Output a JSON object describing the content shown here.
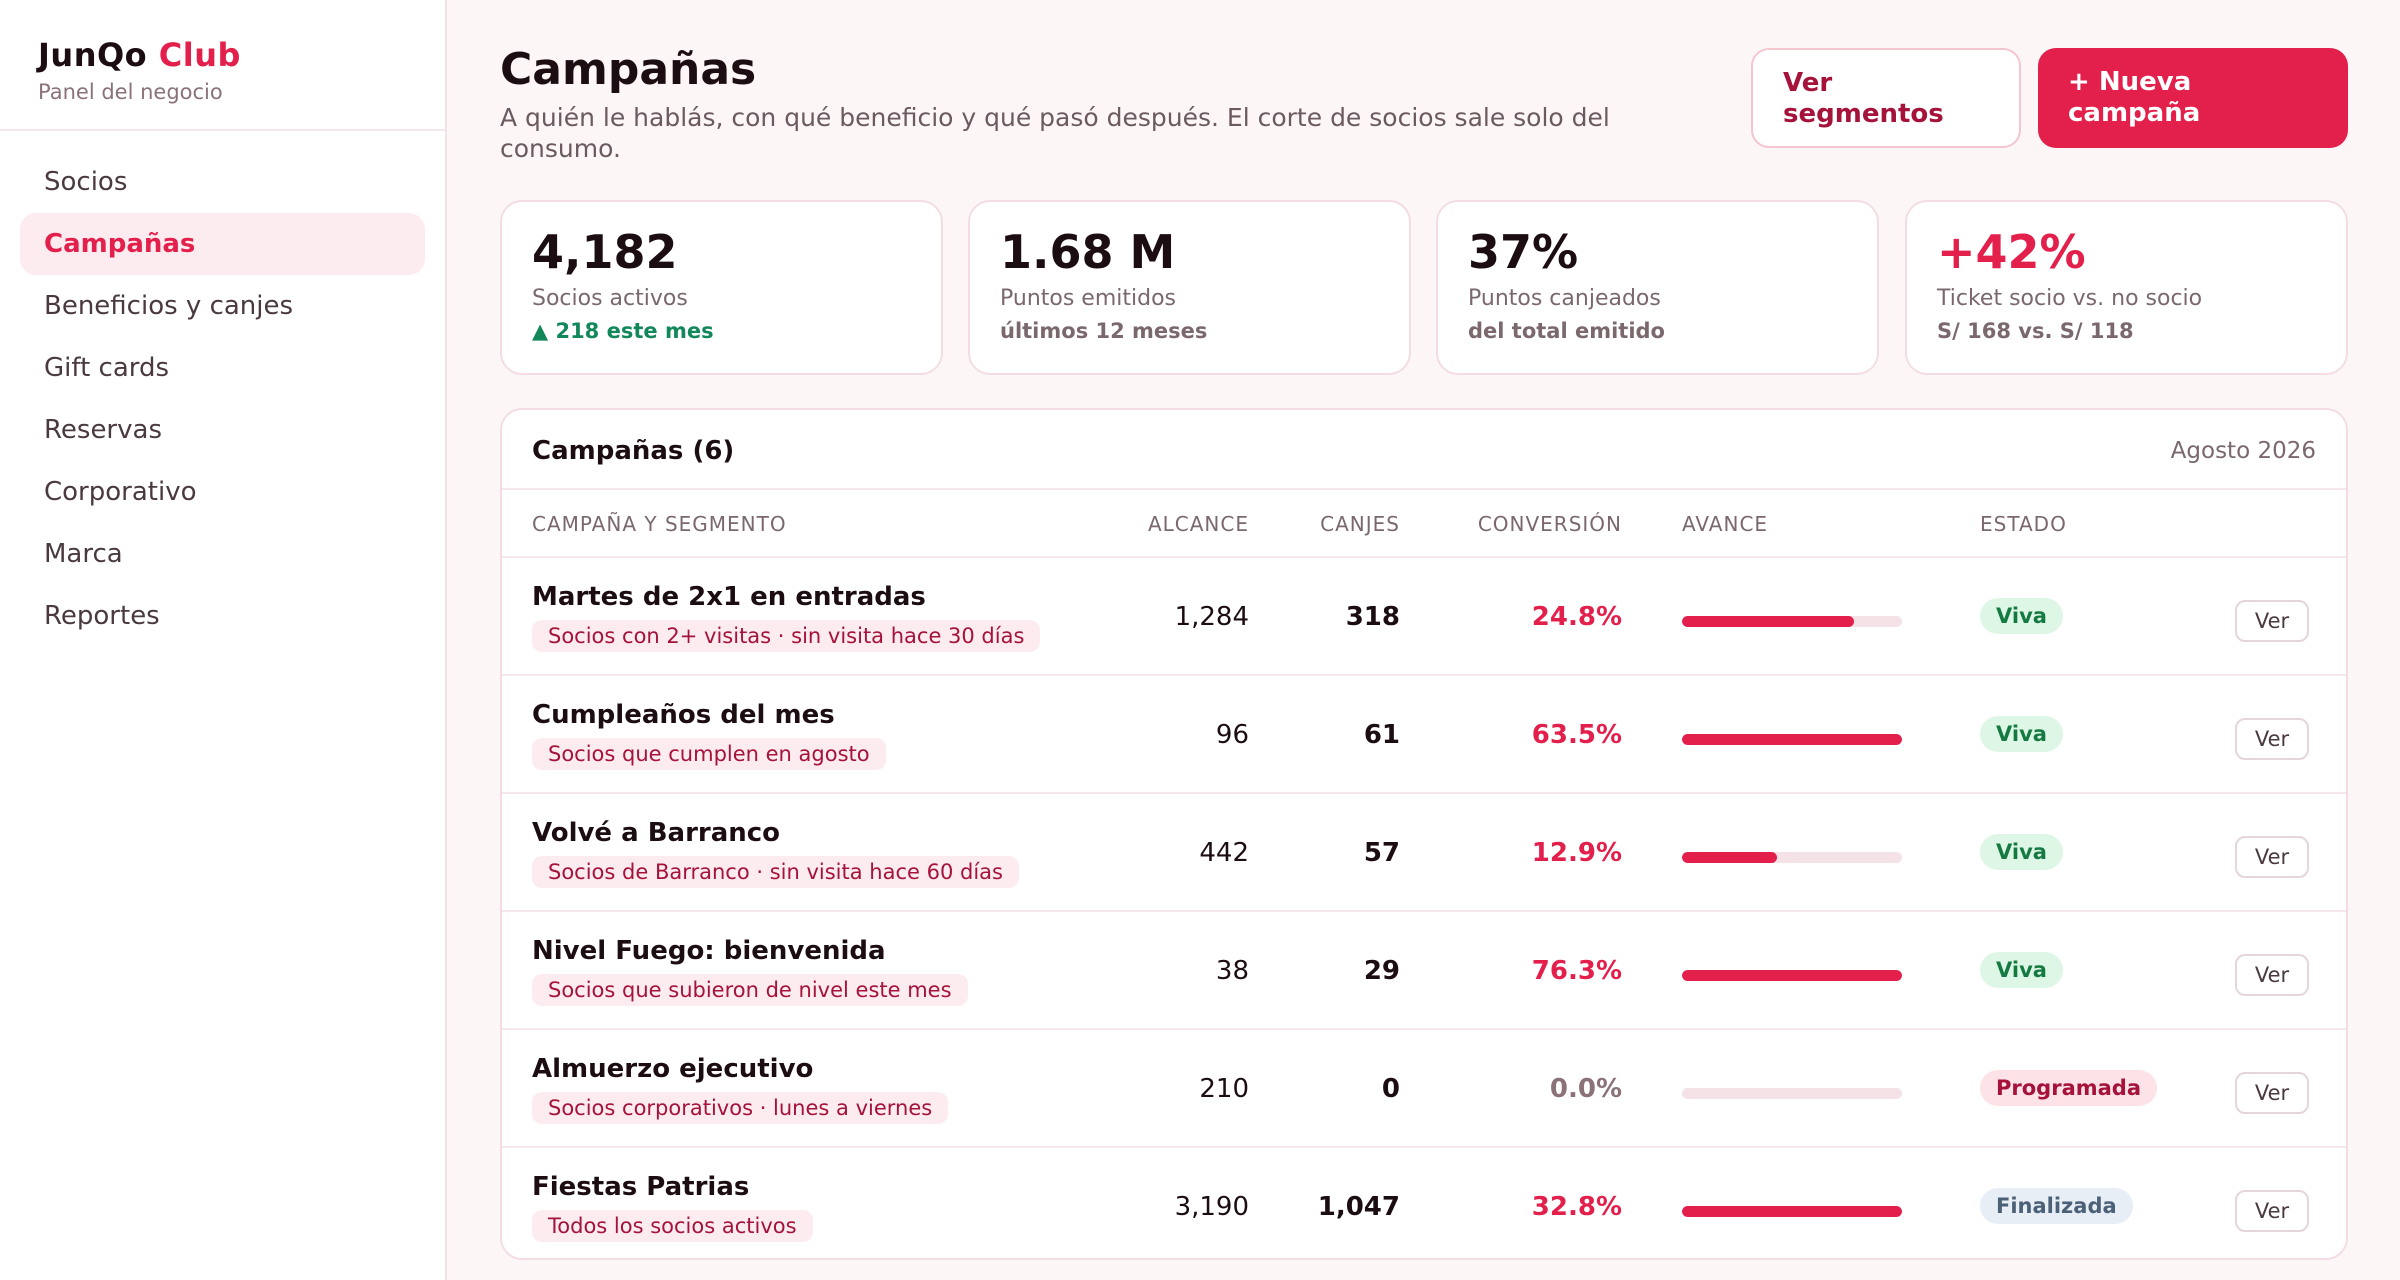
{
  "brand": {
    "name": "JunQo",
    "accent": "Club",
    "subtitle": "Panel del negocio"
  },
  "nav": [
    {
      "label": "Socios",
      "active": false
    },
    {
      "label": "Campañas",
      "active": true
    },
    {
      "label": "Beneficios y canjes",
      "active": false
    },
    {
      "label": "Gift cards",
      "active": false
    },
    {
      "label": "Reservas",
      "active": false
    },
    {
      "label": "Corporativo",
      "active": false
    },
    {
      "label": "Marca",
      "active": false
    },
    {
      "label": "Reportes",
      "active": false
    }
  ],
  "header": {
    "title": "Campañas",
    "subtitle": "A quién le hablás, con qué beneficio y qué pasó después. El corte de socios sale solo del consumo.",
    "segments_button": "Ver segmentos",
    "new_button": "+ Nueva campaña"
  },
  "stats": [
    {
      "value": "4,182",
      "label": "Socios activos",
      "note": "▲ 218 este mes"
    },
    {
      "value": "1.68 M",
      "label": "Puntos emitidos",
      "note": "últimos 12 meses"
    },
    {
      "value": "37%",
      "label": "Puntos canjeados",
      "note": "del total emitido"
    },
    {
      "value": "+42%",
      "label": "Ticket socio vs. no socio",
      "note": "S/ 168 vs. S/ 118"
    }
  ],
  "table": {
    "title": "Campañas (6)",
    "period": "Agosto 2026",
    "columns": {
      "campaign": "CAMPAÑA Y SEGMENTO",
      "reach": "ALCANCE",
      "redemptions": "CANJES",
      "conversion": "CONVERSIÓN",
      "progress": "AVANCE",
      "status": "ESTADO"
    },
    "view_label": "Ver",
    "rows": [
      {
        "name": "Martes de 2x1 en entradas",
        "segment": "Socios con 2+ visitas · sin visita hace 30 días",
        "reach": "1,284",
        "redemptions": "318",
        "conversion": "24.8%",
        "progress": 0.78,
        "status": "Viva",
        "status_kind": "viva"
      },
      {
        "name": "Cumpleaños del mes",
        "segment": "Socios que cumplen en agosto",
        "reach": "96",
        "redemptions": "61",
        "conversion": "63.5%",
        "progress": 1.0,
        "status": "Viva",
        "status_kind": "viva"
      },
      {
        "name": "Volvé a Barranco",
        "segment": "Socios de Barranco · sin visita hace 60 días",
        "reach": "442",
        "redemptions": "57",
        "conversion": "12.9%",
        "progress": 0.43,
        "status": "Viva",
        "status_kind": "viva"
      },
      {
        "name": "Nivel Fuego: bienvenida",
        "segment": "Socios que subieron de nivel este mes",
        "reach": "38",
        "redemptions": "29",
        "conversion": "76.3%",
        "progress": 1.0,
        "status": "Viva",
        "status_kind": "viva"
      },
      {
        "name": "Almuerzo ejecutivo",
        "segment": "Socios corporativos · lunes a viernes",
        "reach": "210",
        "redemptions": "0",
        "conversion": "0.0%",
        "progress": 0.0,
        "status": "Programada",
        "status_kind": "programada"
      },
      {
        "name": "Fiestas Patrias",
        "segment": "Todos los socios activos",
        "reach": "3,190",
        "redemptions": "1,047",
        "conversion": "32.8%",
        "progress": 1.0,
        "status": "Finalizada",
        "status_kind": "finalizada"
      }
    ]
  },
  "colors": {
    "accent": "#e31f4b",
    "positive": "#12875a"
  }
}
